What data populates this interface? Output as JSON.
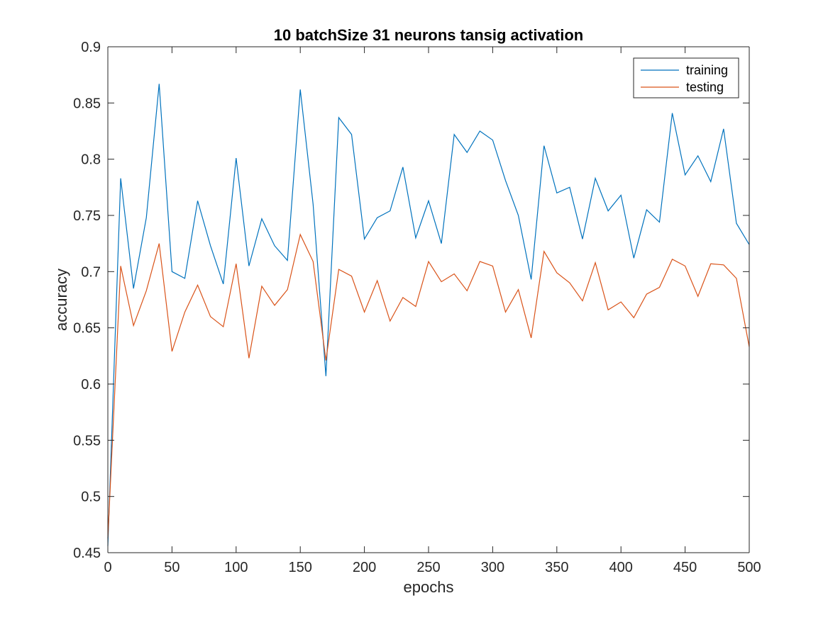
{
  "chart_data": {
    "type": "line",
    "title": "10 batchSize 31 neurons tansig activation",
    "xlabel": "epochs",
    "ylabel": "accuracy",
    "xlim": [
      0,
      500
    ],
    "ylim": [
      0.45,
      0.9
    ],
    "xticks": [
      0,
      50,
      100,
      150,
      200,
      250,
      300,
      350,
      400,
      450,
      500
    ],
    "yticks": [
      0.45,
      0.5,
      0.55,
      0.6,
      0.65,
      0.7,
      0.75,
      0.8,
      0.85,
      0.9
    ],
    "xtick_labels": [
      "0",
      "50",
      "100",
      "150",
      "200",
      "250",
      "300",
      "350",
      "400",
      "450",
      "500"
    ],
    "ytick_labels": [
      "0.45",
      "0.5",
      "0.55",
      "0.6",
      "0.65",
      "0.7",
      "0.75",
      "0.8",
      "0.85",
      "0.9"
    ],
    "grid": false,
    "legend_position": "top-right",
    "x": [
      0,
      10,
      20,
      30,
      40,
      50,
      60,
      70,
      80,
      90,
      100,
      110,
      120,
      130,
      140,
      150,
      160,
      170,
      180,
      190,
      200,
      210,
      220,
      230,
      240,
      250,
      260,
      270,
      280,
      290,
      300,
      310,
      320,
      330,
      340,
      350,
      360,
      370,
      380,
      390,
      400,
      410,
      420,
      430,
      440,
      450,
      460,
      470,
      480,
      490,
      500
    ],
    "series": [
      {
        "name": "training",
        "color": "#0072bd",
        "values": [
          0.456,
          0.783,
          0.685,
          0.748,
          0.867,
          0.7,
          0.694,
          0.763,
          0.723,
          0.689,
          0.801,
          0.705,
          0.747,
          0.723,
          0.71,
          0.862,
          0.76,
          0.607,
          0.837,
          0.822,
          0.729,
          0.748,
          0.754,
          0.793,
          0.73,
          0.763,
          0.725,
          0.822,
          0.806,
          0.825,
          0.817,
          0.781,
          0.75,
          0.693,
          0.812,
          0.77,
          0.775,
          0.729,
          0.783,
          0.754,
          0.768,
          0.712,
          0.755,
          0.744,
          0.841,
          0.786,
          0.803,
          0.78,
          0.827,
          0.743,
          0.724
        ]
      },
      {
        "name": "testing",
        "color": "#d95319",
        "values": [
          0.463,
          0.705,
          0.652,
          0.683,
          0.725,
          0.629,
          0.664,
          0.688,
          0.66,
          0.651,
          0.707,
          0.623,
          0.687,
          0.67,
          0.684,
          0.733,
          0.709,
          0.621,
          0.702,
          0.696,
          0.664,
          0.692,
          0.656,
          0.677,
          0.669,
          0.709,
          0.691,
          0.698,
          0.683,
          0.709,
          0.705,
          0.664,
          0.684,
          0.641,
          0.718,
          0.699,
          0.69,
          0.674,
          0.708,
          0.666,
          0.673,
          0.659,
          0.68,
          0.686,
          0.711,
          0.705,
          0.678,
          0.707,
          0.706,
          0.694,
          0.633
        ]
      }
    ]
  }
}
